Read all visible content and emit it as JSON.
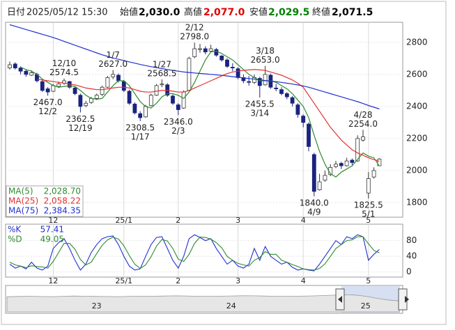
{
  "header": {
    "date_label": "日付",
    "date": "2025/05/12 15:30",
    "fields": [
      {
        "label": "始値",
        "value": "2,030.0",
        "color": "#000000"
      },
      {
        "label": "高値",
        "value": "2,077.0",
        "color": "#e00000"
      },
      {
        "label": "安値",
        "value": "2,029.5",
        "color": "#008000"
      },
      {
        "label": "終値",
        "value": "2,071.5",
        "color": "#000000"
      }
    ]
  },
  "chart_data": {
    "type": "candlestick",
    "categories": [
      null,
      null,
      null,
      null,
      null,
      null,
      null,
      null,
      "12",
      null,
      null,
      null,
      null,
      null,
      null,
      null,
      null,
      null,
      null,
      null,
      null,
      "25/1",
      null,
      null,
      null,
      null,
      null,
      null,
      null,
      null,
      null,
      "2",
      null,
      null,
      null,
      null,
      null,
      null,
      null,
      null,
      null,
      null,
      "3",
      null,
      null,
      null,
      null,
      null,
      null,
      null,
      null,
      null,
      null,
      null,
      "4",
      null,
      null,
      null,
      null,
      null,
      null,
      null,
      null,
      null,
      null,
      null,
      "5",
      null,
      null
    ],
    "ohlc": [
      [
        2640,
        2680,
        2630,
        2660
      ],
      [
        2665,
        2675,
        2630,
        2640
      ],
      [
        2640,
        2650,
        2600,
        2620
      ],
      [
        2620,
        2630,
        2585,
        2600
      ],
      [
        2595,
        2625,
        2590,
        2610
      ],
      [
        2600,
        2610,
        2550,
        2560
      ],
      [
        2555,
        2565,
        2490,
        2500
      ],
      [
        2510,
        2520,
        2467.0,
        2490
      ],
      [
        2495,
        2540,
        2490,
        2530
      ],
      [
        2525,
        2555,
        2515,
        2540
      ],
      [
        2545,
        2574.5,
        2535,
        2560
      ],
      [
        2555,
        2560,
        2510,
        2520
      ],
      [
        2515,
        2525,
        2470,
        2480
      ],
      [
        2470,
        2480,
        2362.5,
        2400
      ],
      [
        2405,
        2435,
        2395,
        2420
      ],
      [
        2425,
        2460,
        2415,
        2450
      ],
      [
        2450,
        2480,
        2440,
        2470
      ],
      [
        2475,
        2530,
        2465,
        2520
      ],
      [
        2520,
        2590,
        2515,
        2580
      ],
      [
        2585,
        2627.0,
        2570,
        2600
      ],
      [
        2595,
        2605,
        2550,
        2560
      ],
      [
        2555,
        2565,
        2490,
        2500
      ],
      [
        2495,
        2505,
        2410,
        2420
      ],
      [
        2415,
        2425,
        2350,
        2360
      ],
      [
        2355,
        2370,
        2308.5,
        2330
      ],
      [
        2335,
        2410,
        2330,
        2400
      ],
      [
        2405,
        2480,
        2400,
        2470
      ],
      [
        2470,
        2540,
        2465,
        2530
      ],
      [
        2535,
        2568.5,
        2520,
        2540
      ],
      [
        2535,
        2545,
        2460,
        2470
      ],
      [
        2465,
        2475,
        2410,
        2420
      ],
      [
        2410,
        2420,
        2346.0,
        2380
      ],
      [
        2390,
        2500,
        2385,
        2490
      ],
      [
        2500,
        2710,
        2495,
        2700
      ],
      [
        2710,
        2798.0,
        2700,
        2760
      ],
      [
        2755,
        2790,
        2735,
        2760
      ],
      [
        2760,
        2775,
        2725,
        2740
      ],
      [
        2745,
        2785,
        2735,
        2760
      ],
      [
        2755,
        2765,
        2710,
        2720
      ],
      [
        2715,
        2720,
        2680,
        2690
      ],
      [
        2690,
        2700,
        2640,
        2650
      ],
      [
        2645,
        2670,
        2620,
        2640
      ],
      [
        2635,
        2645,
        2570,
        2580
      ],
      [
        2580,
        2600,
        2545,
        2560
      ],
      [
        2555,
        2590,
        2530,
        2550
      ],
      [
        2550,
        2600,
        2540,
        2580
      ],
      [
        2575,
        2585,
        2455.5,
        2530
      ],
      [
        2535,
        2653.0,
        2530,
        2600
      ],
      [
        2595,
        2605,
        2510,
        2520
      ],
      [
        2515,
        2540,
        2495,
        2510
      ],
      [
        2505,
        2520,
        2470,
        2480
      ],
      [
        2480,
        2490,
        2445,
        2460
      ],
      [
        2455,
        2465,
        2400,
        2420
      ],
      [
        2410,
        2420,
        2330,
        2350
      ],
      [
        2340,
        2350,
        2270,
        2300
      ],
      [
        2290,
        2300,
        2120,
        2150
      ],
      [
        2100,
        2110,
        1840.0,
        1870
      ],
      [
        1880,
        1980,
        1875,
        1930
      ],
      [
        1940,
        2000,
        1930,
        1970
      ],
      [
        1975,
        2040,
        1965,
        2020
      ],
      [
        2025,
        2060,
        2015,
        2040
      ],
      [
        2045,
        2055,
        2010,
        2030
      ],
      [
        2030,
        2080,
        2025,
        2060
      ],
      [
        2065,
        2075,
        2035,
        2050
      ],
      [
        2060,
        2220,
        2055,
        2200
      ],
      [
        2190,
        2254.0,
        2180,
        2210
      ],
      [
        1860,
        1990,
        1825.5,
        1950
      ],
      [
        1960,
        2020,
        1950,
        2000
      ],
      [
        2030,
        2077.0,
        2029.5,
        2071.5
      ]
    ],
    "up_color": "#ffffff",
    "down_color": "#1a237e",
    "edge_color": "#333333",
    "ylim": [
      1709,
      2925
    ],
    "yticks": [
      1800,
      2000,
      2200,
      2400,
      2600,
      2800
    ],
    "grid": true,
    "series": [
      {
        "name": "MA(5)",
        "color": "#2e8b2e",
        "latest_label": "2,028.70",
        "values": [
          null,
          null,
          2645,
          2630,
          2620,
          2600,
          2570,
          2550,
          2530,
          2520,
          2525,
          2530,
          2525,
          2500,
          2470,
          2450,
          2445,
          2450,
          2490,
          2530,
          2560,
          2560,
          2530,
          2480,
          2430,
          2400,
          2390,
          2420,
          2460,
          2480,
          2480,
          2470,
          2450,
          2490,
          2550,
          2620,
          2690,
          2740,
          2745,
          2730,
          2710,
          2690,
          2660,
          2630,
          2600,
          2580,
          2560,
          2560,
          2560,
          2550,
          2530,
          2510,
          2480,
          2440,
          2400,
          2330,
          2220,
          2120,
          2040,
          1980,
          1960,
          1990,
          2010,
          2030,
          2070,
          2110,
          2090,
          2080,
          2028.7
        ]
      },
      {
        "name": "MA(25)",
        "color": "#e03030",
        "latest_label": "2,058.22",
        "values": [
          null,
          null,
          null,
          null,
          null,
          2570,
          2565,
          2560,
          2555,
          2550,
          2545,
          2540,
          2535,
          2525,
          2515,
          2510,
          2505,
          2505,
          2510,
          2515,
          2520,
          2520,
          2515,
          2505,
          2495,
          2490,
          2490,
          2495,
          2500,
          2500,
          2495,
          2490,
          2490,
          2500,
          2515,
          2530,
          2545,
          2560,
          2575,
          2590,
          2605,
          2615,
          2620,
          2625,
          2628,
          2630,
          2628,
          2625,
          2615,
          2605,
          2595,
          2580,
          2565,
          2545,
          2520,
          2470,
          2420,
          2370,
          2320,
          2270,
          2230,
          2190,
          2160,
          2130,
          2110,
          2095,
          2080,
          2068,
          2058.22
        ]
      },
      {
        "name": "MA(75)",
        "color": "#2030d0",
        "latest_label": "2,384.35",
        "values": [
          2910,
          2900,
          2890,
          2880,
          2870,
          2860,
          2850,
          2840,
          2830,
          2818,
          2806,
          2794,
          2782,
          2770,
          2758,
          2746,
          2734,
          2722,
          2712,
          2702,
          2694,
          2686,
          2678,
          2670,
          2662,
          2655,
          2648,
          2642,
          2636,
          2630,
          2625,
          2620,
          2615,
          2612,
          2609,
          2606,
          2603,
          2600,
          2597,
          2594,
          2590,
          2586,
          2582,
          2578,
          2574,
          2570,
          2566,
          2562,
          2558,
          2554,
          2550,
          2545,
          2540,
          2534,
          2528,
          2520,
          2510,
          2500,
          2490,
          2480,
          2470,
          2460,
          2450,
          2440,
          2430,
          2418,
          2406,
          2395,
          2384.35
        ]
      }
    ],
    "annotations": [
      {
        "date": "12/2",
        "price": 2467.0,
        "price_label": "2467.0",
        "at": "low"
      },
      {
        "date": "12/10",
        "price": 2574.5,
        "price_label": "2574.5",
        "at": "high"
      },
      {
        "date": "12/19",
        "price": 2362.5,
        "price_label": "2362.5",
        "at": "low"
      },
      {
        "date": "1/7",
        "price": 2627.0,
        "price_label": "2627.0",
        "at": "high"
      },
      {
        "date": "1/17",
        "price": 2308.5,
        "price_label": "2308.5",
        "at": "low"
      },
      {
        "date": "1/27",
        "price": 2568.5,
        "price_label": "2568.5",
        "at": "high"
      },
      {
        "date": "2/3",
        "price": 2346.0,
        "price_label": "2346.0",
        "at": "low"
      },
      {
        "date": "2/12",
        "price": 2798.0,
        "price_label": "2798.0",
        "at": "high"
      },
      {
        "date": "3/14",
        "price": 2455.5,
        "price_label": "2455.5",
        "at": "low"
      },
      {
        "date": "3/18",
        "price": 2653.0,
        "price_label": "2653.0",
        "at": "high"
      },
      {
        "date": "4/9",
        "price": 1840.0,
        "price_label": "1840.0",
        "at": "low"
      },
      {
        "date": "4/28",
        "price": 2254.0,
        "price_label": "2254.0",
        "at": "high"
      },
      {
        "date": "5/1",
        "price": 1825.5,
        "price_label": "1825.5",
        "at": "low"
      }
    ],
    "stochastic": {
      "ylim": [
        -13,
        122
      ],
      "yticks": [
        0,
        40,
        80
      ],
      "series": [
        {
          "name": "%K",
          "color": "#2030d0",
          "values": [
            20,
            10,
            15,
            8,
            25,
            10,
            5,
            15,
            60,
            75,
            85,
            60,
            30,
            5,
            20,
            50,
            70,
            85,
            90,
            92,
            70,
            40,
            15,
            5,
            8,
            40,
            70,
            88,
            90,
            60,
            30,
            10,
            40,
            85,
            95,
            88,
            80,
            85,
            60,
            40,
            20,
            30,
            15,
            10,
            20,
            60,
            30,
            65,
            40,
            30,
            20,
            25,
            12,
            5,
            8,
            5,
            3,
            20,
            40,
            60,
            80,
            70,
            90,
            85,
            95,
            90,
            30,
            45,
            57.41
          ]
        },
        {
          "name": "%D",
          "color": "#2e8b2e",
          "values": [
            25,
            18,
            15,
            11,
            16,
            14,
            13,
            10,
            27,
            50,
            73,
            73,
            58,
            32,
            18,
            25,
            47,
            68,
            82,
            89,
            84,
            67,
            42,
            20,
            9,
            18,
            39,
            66,
            83,
            79,
            60,
            33,
            27,
            45,
            73,
            89,
            88,
            84,
            75,
            62,
            40,
            30,
            22,
            18,
            15,
            30,
            37,
            52,
            45,
            45,
            30,
            25,
            19,
            14,
            8,
            6,
            5,
            9,
            21,
            40,
            60,
            70,
            80,
            82,
            90,
            90,
            72,
            55,
            49.05
          ]
        }
      ]
    },
    "navigator": {
      "ylim": [
        1000,
        3400
      ],
      "categories": [
        null,
        null,
        null,
        null,
        null,
        null,
        null,
        null,
        "23",
        null,
        null,
        null,
        null,
        null,
        null,
        null,
        null,
        null,
        null,
        null,
        "24",
        null,
        null,
        null,
        null,
        null,
        null,
        null,
        null,
        null,
        null,
        null,
        "25",
        null,
        null,
        null
      ],
      "values": [
        2450,
        2480,
        2500,
        2470,
        2460,
        2490,
        2520,
        2500,
        2480,
        2470,
        2460,
        2490,
        2510,
        2500,
        2520,
        2540,
        2530,
        2500,
        2490,
        2510,
        2530,
        2550,
        2540,
        2520,
        2500,
        2490,
        2510,
        2530,
        2560,
        2600,
        2640,
        2620,
        2500,
        2300,
        2150,
        2050
      ]
    }
  }
}
